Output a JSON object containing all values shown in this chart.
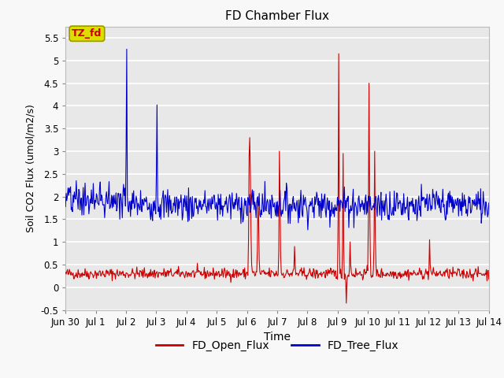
{
  "title": "FD Chamber Flux",
  "xlabel": "Time",
  "ylabel": "Soil CO2 Flux (umol/m2/s)",
  "ylim": [
    -0.5,
    5.75
  ],
  "yticks": [
    -0.5,
    0.0,
    0.5,
    1.0,
    1.5,
    2.0,
    2.5,
    3.0,
    3.5,
    4.0,
    4.5,
    5.0,
    5.5
  ],
  "xtick_labels": [
    "Jun 30",
    "Jul 1",
    "Jul 2",
    "Jul 3",
    "Jul 4",
    "Jul 5",
    "Jul 6",
    "Jul 7",
    "Jul 8",
    "Jul 9",
    "Jul 10",
    "Jul 11",
    "Jul 12",
    "Jul 13",
    "Jul 14"
  ],
  "legend_labels": [
    "FD_Open_Flux",
    "FD_Tree_Flux"
  ],
  "open_color": "#cc0000",
  "tree_color": "#0000cc",
  "annotation_text": "TZ_fd",
  "annotation_bg": "#dddd00",
  "annotation_text_color": "#cc0000",
  "plot_bg_color": "#e8e8e8",
  "fig_bg_color": "#f8f8f8",
  "grid_color": "#ffffff",
  "n_days": 14,
  "pts_per_day": 48
}
